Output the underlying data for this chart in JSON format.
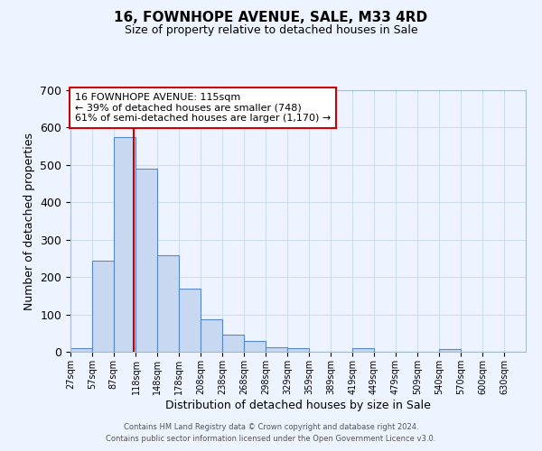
{
  "title1": "16, FOWNHOPE AVENUE, SALE, M33 4RD",
  "title2": "Size of property relative to detached houses in Sale",
  "xlabel": "Distribution of detached houses by size in Sale",
  "ylabel": "Number of detached properties",
  "bin_labels": [
    "27sqm",
    "57sqm",
    "87sqm",
    "118sqm",
    "148sqm",
    "178sqm",
    "208sqm",
    "238sqm",
    "268sqm",
    "298sqm",
    "329sqm",
    "359sqm",
    "389sqm",
    "419sqm",
    "449sqm",
    "479sqm",
    "509sqm",
    "540sqm",
    "570sqm",
    "600sqm",
    "630sqm"
  ],
  "bar_heights": [
    10,
    243,
    575,
    490,
    258,
    170,
    88,
    47,
    28,
    13,
    10,
    0,
    0,
    10,
    0,
    0,
    0,
    8,
    0,
    0,
    0
  ],
  "bar_color": "#c8d8f0",
  "bar_edge_color": "#5588cc",
  "grid_color": "#ccddee",
  "background_color": "#eef4ff",
  "vline_x": 115,
  "vline_color": "#cc0000",
  "ylim": [
    0,
    700
  ],
  "yticks": [
    0,
    100,
    200,
    300,
    400,
    500,
    600,
    700
  ],
  "annotation_text": "16 FOWNHOPE AVENUE: 115sqm\n← 39% of detached houses are smaller (748)\n61% of semi-detached houses are larger (1,170) →",
  "annotation_box_color": "#ffffff",
  "annotation_box_edge": "#cc0000",
  "footer1": "Contains HM Land Registry data © Crown copyright and database right 2024.",
  "footer2": "Contains public sector information licensed under the Open Government Licence v3.0.",
  "bin_edges": [
    27,
    57,
    87,
    118,
    148,
    178,
    208,
    238,
    268,
    298,
    329,
    359,
    389,
    419,
    449,
    479,
    509,
    540,
    570,
    600,
    630,
    660
  ]
}
